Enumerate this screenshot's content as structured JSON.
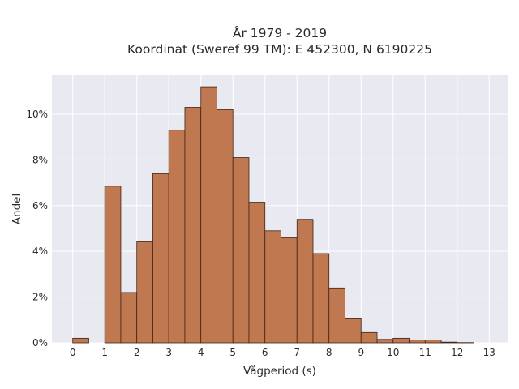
{
  "chart_data": {
    "type": "bar",
    "title_line1": "År 1979 - 2019",
    "title_line2": "Koordinat (Sweref 99 TM): E 452300, N 6190225",
    "xlabel": "Vågperiod (s)",
    "ylabel": "Andel",
    "bin_width": 0.5,
    "bin_starts": [
      0,
      0.5,
      1,
      1.5,
      2,
      2.5,
      3,
      3.5,
      4,
      4.5,
      5,
      5.5,
      6,
      6.5,
      7,
      7.5,
      8,
      8.5,
      9,
      9.5,
      10,
      10.5,
      11,
      11.5,
      12,
      12.5
    ],
    "values": [
      0.2,
      0,
      6.85,
      2.2,
      4.45,
      7.4,
      9.3,
      10.3,
      11.2,
      10.2,
      8.1,
      6.15,
      4.9,
      4.6,
      5.4,
      3.9,
      2.4,
      1.05,
      0.45,
      0.15,
      0.2,
      0.12,
      0.12,
      0.03,
      0.01,
      0
    ],
    "xlim": [
      -0.65,
      13.6
    ],
    "ylim": [
      0,
      11.7
    ],
    "xticks": [
      0,
      1,
      2,
      3,
      4,
      5,
      6,
      7,
      8,
      9,
      10,
      11,
      12,
      13
    ],
    "xtick_labels": [
      "0",
      "1",
      "2",
      "3",
      "4",
      "5",
      "6",
      "7",
      "8",
      "9",
      "10",
      "11",
      "12",
      "13"
    ],
    "yticks": [
      0,
      2,
      4,
      6,
      8,
      10
    ],
    "ytick_labels": [
      "0%",
      "2%",
      "4%",
      "6%",
      "8%",
      "10%"
    ],
    "grid": true,
    "colors": {
      "bar_fill": "#c07850",
      "bar_edge": "#3d2416",
      "plot_bg": "#e9e9f2",
      "grid": "#ffffff"
    }
  }
}
